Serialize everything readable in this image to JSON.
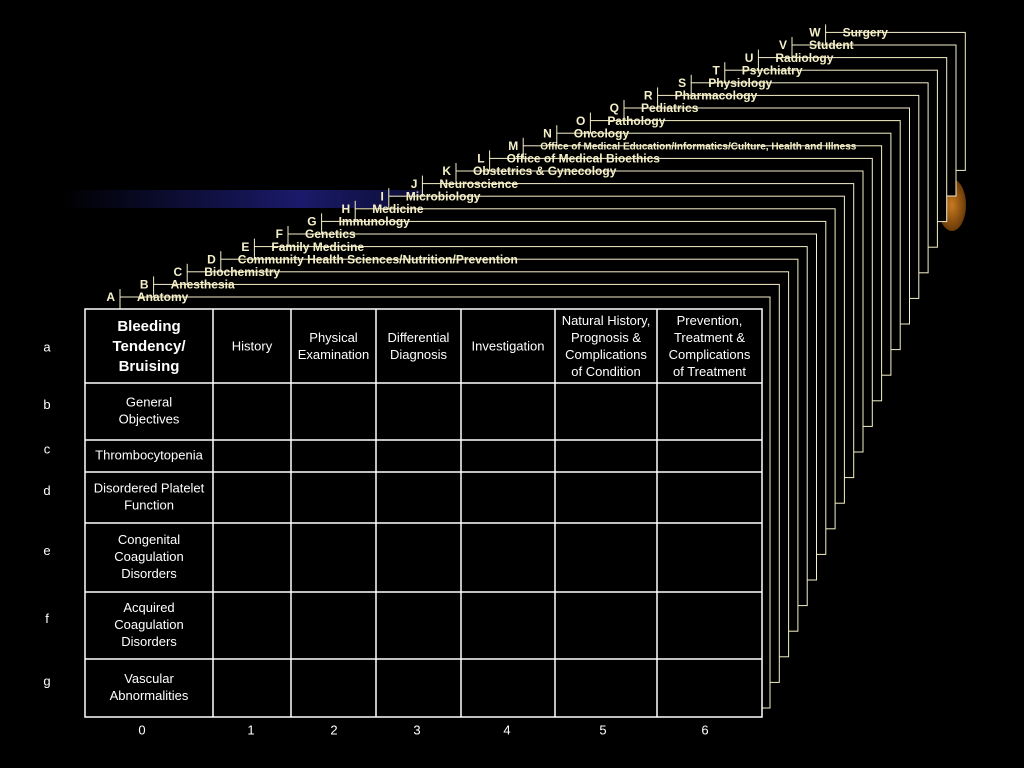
{
  "layers": [
    {
      "letter": "A",
      "name": "Anatomy"
    },
    {
      "letter": "B",
      "name": "Anesthesia"
    },
    {
      "letter": "C",
      "name": "Biochemistry"
    },
    {
      "letter": "D",
      "name": "Community Health Sciences/Nutrition/Prevention"
    },
    {
      "letter": "E",
      "name": "Family Medicine"
    },
    {
      "letter": "F",
      "name": "Genetics"
    },
    {
      "letter": "G",
      "name": "Immunology"
    },
    {
      "letter": "H",
      "name": "Medicine"
    },
    {
      "letter": "I",
      "name": "Microbiology"
    },
    {
      "letter": "J",
      "name": "Neuroscience"
    },
    {
      "letter": "K",
      "name": "Obstetrics & Gynecology"
    },
    {
      "letter": "L",
      "name": "Office of Medical Bioethics"
    },
    {
      "letter": "M",
      "name": "Office of Medical Education/Informatics/Culture, Health and Illness"
    },
    {
      "letter": "N",
      "name": "Oncology"
    },
    {
      "letter": "O",
      "name": "Pathology"
    },
    {
      "letter": "Q",
      "name": "Pediatrics"
    },
    {
      "letter": "R",
      "name": "Pharmacology"
    },
    {
      "letter": "S",
      "name": "Physiology"
    },
    {
      "letter": "T",
      "name": "Psychiatry"
    },
    {
      "letter": "U",
      "name": "Radiology"
    },
    {
      "letter": "V",
      "name": "Student"
    },
    {
      "letter": "W",
      "name": "Surgery"
    }
  ],
  "table": {
    "corner": [
      "Bleeding",
      "Tendency/",
      "Bruising"
    ],
    "columns": [
      [
        "History"
      ],
      [
        "Physical",
        "Examination"
      ],
      [
        "Differential",
        "Diagnosis"
      ],
      [
        "Investigation"
      ],
      [
        "Natural History,",
        "Prognosis &",
        "Complications",
        "of  Condition"
      ],
      [
        "Prevention,",
        "Treatment &",
        "Complications",
        "of Treatment"
      ]
    ],
    "rows": [
      [
        "General",
        "Objectives"
      ],
      [
        "Thrombocytopenia"
      ],
      [
        "Disordered Platelet",
        "Function"
      ],
      [
        "Congenital",
        "Coagulation",
        "Disorders"
      ],
      [
        "Acquired",
        "Coagulation",
        "Disorders"
      ],
      [
        "Vascular",
        "Abnormalities"
      ]
    ],
    "row_labels": [
      "a",
      "b",
      "c",
      "d",
      "e",
      "f",
      "g"
    ],
    "column_labels": [
      "0",
      "1",
      "2",
      "3",
      "4",
      "5",
      "6"
    ]
  }
}
